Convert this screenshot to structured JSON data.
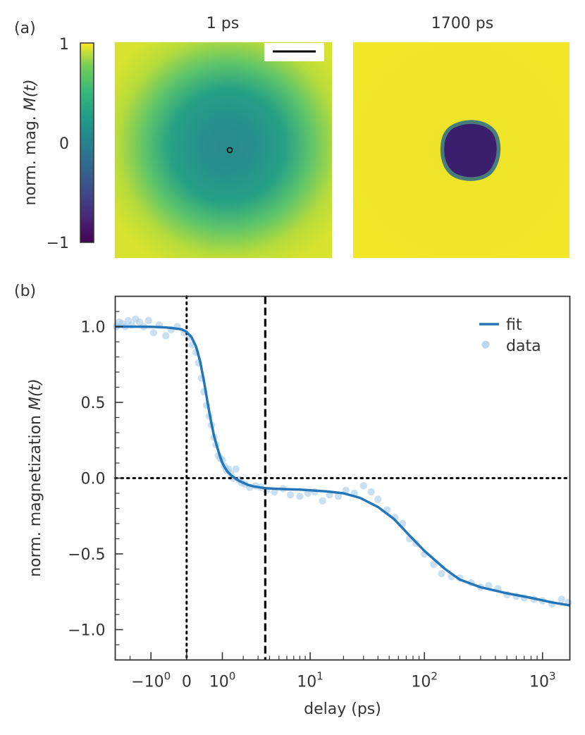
{
  "panel_a": {
    "label": "(a)",
    "images": [
      {
        "title": "1 ps"
      },
      {
        "title": "1700 ps"
      }
    ],
    "colorbar": {
      "label_prefix": "norm. mag. ",
      "label_math": "M(t)",
      "ticks": [
        "1",
        "0",
        "−1"
      ],
      "colormap": "viridis"
    },
    "scale_bar": true
  },
  "chart_data": {
    "type": "line",
    "panel_label": "(b)",
    "xlabel": "delay (ps)",
    "ylabel_prefix": "norm. magnetization ",
    "ylabel_math": "M(t)",
    "xscale": "symlog",
    "linthresh": 1,
    "xlim": [
      -3,
      1700
    ],
    "ylim": [
      -1.2,
      1.2
    ],
    "ytick_labels": [
      "1.0",
      "0.5",
      "0.0",
      "−0.5",
      "−1.0"
    ],
    "ytick_values": [
      1.0,
      0.5,
      0.0,
      -0.5,
      -1.0
    ],
    "xtick_labels": [
      {
        "base": "−10",
        "exp": "0",
        "value": -1
      },
      {
        "base": "0",
        "exp": "",
        "value": 0
      },
      {
        "base": "10",
        "exp": "0",
        "value": 1
      },
      {
        "base": "10",
        "exp": "1",
        "value": 10
      },
      {
        "base": "10",
        "exp": "2",
        "value": 100
      },
      {
        "base": "10",
        "exp": "3",
        "value": 1000
      }
    ],
    "vlines": [
      {
        "x": 0,
        "style": "dotted",
        "color": "#000000"
      },
      {
        "x": 3.6,
        "style": "dashed",
        "color": "#000000"
      }
    ],
    "hlines": [
      {
        "y": 0,
        "style": "dotted",
        "color": "#000000"
      }
    ],
    "legend": {
      "position": "top-right",
      "entries": [
        "fit",
        "data"
      ]
    },
    "colors": {
      "fit": "#2576b8",
      "data": "#9ec6e6"
    },
    "series": [
      {
        "name": "fit",
        "kind": "line",
        "x": [
          -3,
          -2,
          -1,
          -0.5,
          -0.3,
          -0.1,
          0,
          0.1,
          0.2,
          0.3,
          0.4,
          0.5,
          0.6,
          0.7,
          0.8,
          0.9,
          1.0,
          1.1,
          1.2,
          1.4,
          1.6,
          1.8,
          2.0,
          2.3,
          2.7,
          3.2,
          3.6,
          4.5,
          6,
          8,
          10,
          14,
          20,
          28,
          40,
          55,
          75,
          100,
          150,
          200,
          300,
          500,
          800,
          1200,
          1700
        ],
        "y": [
          1.0,
          1.0,
          0.999,
          0.995,
          0.99,
          0.982,
          0.965,
          0.93,
          0.87,
          0.77,
          0.64,
          0.5,
          0.38,
          0.28,
          0.21,
          0.15,
          0.1,
          0.07,
          0.045,
          0.015,
          -0.005,
          -0.02,
          -0.03,
          -0.045,
          -0.055,
          -0.062,
          -0.066,
          -0.07,
          -0.073,
          -0.076,
          -0.08,
          -0.087,
          -0.1,
          -0.13,
          -0.19,
          -0.27,
          -0.38,
          -0.48,
          -0.6,
          -0.67,
          -0.72,
          -0.76,
          -0.79,
          -0.82,
          -0.84
        ]
      },
      {
        "name": "data",
        "kind": "scatter",
        "x": [
          -2.9,
          -2.7,
          -2.5,
          -2.3,
          -2.1,
          -1.9,
          -1.7,
          -1.5,
          -1.3,
          -1.1,
          -0.9,
          -0.7,
          -0.5,
          -0.35,
          -0.2,
          -0.05,
          0.05,
          0.12,
          0.2,
          0.26,
          0.33,
          0.4,
          0.47,
          0.55,
          0.62,
          0.7,
          0.77,
          0.85,
          0.92,
          1.0,
          1.08,
          1.17,
          1.25,
          1.35,
          1.45,
          1.6,
          1.75,
          1.9,
          2.1,
          2.4,
          2.8,
          3.2,
          3.7,
          4.5,
          5.5,
          6.5,
          8,
          9.5,
          11,
          13,
          15,
          18,
          21,
          25,
          30,
          35,
          40,
          48,
          56,
          65,
          75,
          85,
          100,
          120,
          140,
          170,
          200,
          250,
          300,
          350,
          420,
          500,
          600,
          700,
          850,
          1000,
          1200,
          1450,
          1650
        ],
        "y": [
          1.0,
          1.03,
          1.02,
          1.0,
          1.04,
          1.01,
          1.05,
          1.03,
          1.0,
          1.04,
          0.96,
          1.01,
          0.94,
          0.98,
          1.0,
          0.96,
          0.93,
          0.88,
          0.83,
          0.76,
          0.66,
          0.57,
          0.48,
          0.41,
          0.35,
          0.27,
          0.22,
          0.15,
          0.13,
          0.12,
          0.08,
          0.05,
          0.06,
          0.03,
          0.0,
          0.06,
          -0.01,
          -0.03,
          -0.04,
          -0.06,
          -0.05,
          -0.06,
          -0.08,
          -0.09,
          -0.07,
          -0.11,
          -0.12,
          -0.1,
          -0.09,
          -0.15,
          -0.11,
          -0.12,
          -0.08,
          -0.1,
          -0.05,
          -0.09,
          -0.14,
          -0.21,
          -0.26,
          -0.3,
          -0.4,
          -0.43,
          -0.5,
          -0.57,
          -0.63,
          -0.65,
          -0.66,
          -0.69,
          -0.72,
          -0.71,
          -0.73,
          -0.77,
          -0.78,
          -0.79,
          -0.8,
          -0.81,
          -0.83,
          -0.8,
          -0.82
        ]
      }
    ]
  }
}
